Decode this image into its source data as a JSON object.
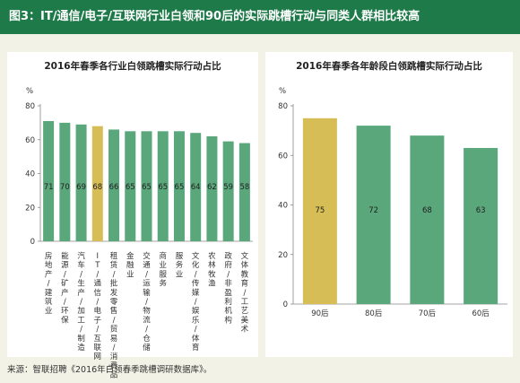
{
  "header": {
    "title": "图3：IT/通信/电子/互联网行业白领和90后的实际跳槽行动与同类人群相比较高"
  },
  "footer": {
    "source": "来源：智联招聘《2016年白领春季跳槽调研数据库》。"
  },
  "colors": {
    "header_bg": "#1f7a4a",
    "bar_green": "#5aa77b",
    "bar_highlight": "#d6bd55",
    "background": "#f3f2e7"
  },
  "chart_data": [
    {
      "type": "bar",
      "title": "2016年春季各行业白领跳槽实际行动占比",
      "ylabel": "%",
      "ylim": [
        0,
        80
      ],
      "yticks": [
        0,
        20,
        40,
        60,
        80
      ],
      "categories": [
        "房地产/建筑业",
        "能源/矿产/环保",
        "汽车/生产/加工/制造",
        "IT/通信/电子/互联网",
        "租赁/批发零售/贸易/消费品",
        "金融业",
        "交通/运输/物流/仓储",
        "商业服务",
        "服务业",
        "文化/传媒/娱乐/体育",
        "农林牧渔",
        "政府/非盈利机构",
        "文体教育/工艺美术"
      ],
      "values": [
        71,
        70,
        69,
        68,
        66,
        65,
        65,
        65,
        65,
        64,
        62,
        59,
        58
      ],
      "highlight_index": 3,
      "grid": false
    },
    {
      "type": "bar",
      "title": "2016年春季各年龄段白领跳槽实际行动占比",
      "ylabel": "%",
      "ylim": [
        0,
        80
      ],
      "yticks": [
        0,
        20,
        40,
        60,
        80
      ],
      "categories": [
        "90后",
        "80后",
        "70后",
        "60后"
      ],
      "values": [
        75,
        72,
        68,
        63
      ],
      "highlight_index": 0,
      "grid": false
    }
  ]
}
